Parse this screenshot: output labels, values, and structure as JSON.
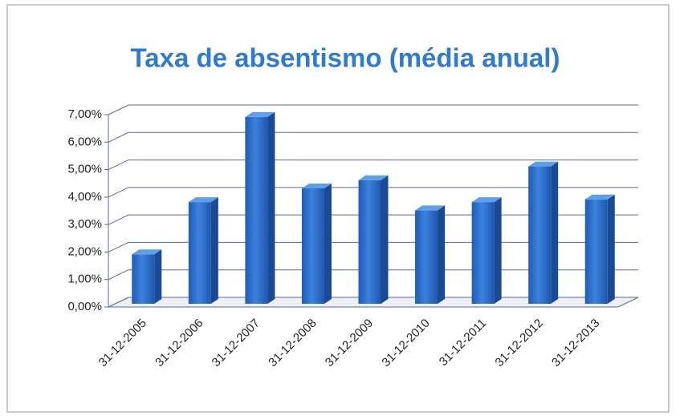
{
  "chart_data": {
    "type": "bar3d",
    "title": "Taxa de absentismo (média anual)",
    "categories": [
      "31-12-2005",
      "31-12-2006",
      "31-12-2007",
      "31-12-2008",
      "31-12-2009",
      "31-12-2010",
      "31-12-2011",
      "31-12-2012",
      "31-12-2013"
    ],
    "values": [
      1.8,
      3.7,
      6.8,
      4.2,
      4.5,
      3.4,
      3.7,
      5.0,
      3.8
    ],
    "color": "#2a6ccc",
    "ylim": [
      0,
      7
    ],
    "yticks": [
      {
        "value": 0,
        "label": "0,00%"
      },
      {
        "value": 1,
        "label": "1,00%"
      },
      {
        "value": 2,
        "label": "2,00%"
      },
      {
        "value": 3,
        "label": "3,00%"
      },
      {
        "value": 4,
        "label": "4,00%"
      },
      {
        "value": 5,
        "label": "5,00%"
      },
      {
        "value": 6,
        "label": "6,00%"
      },
      {
        "value": 7,
        "label": "7,00%"
      }
    ],
    "grid": true
  }
}
